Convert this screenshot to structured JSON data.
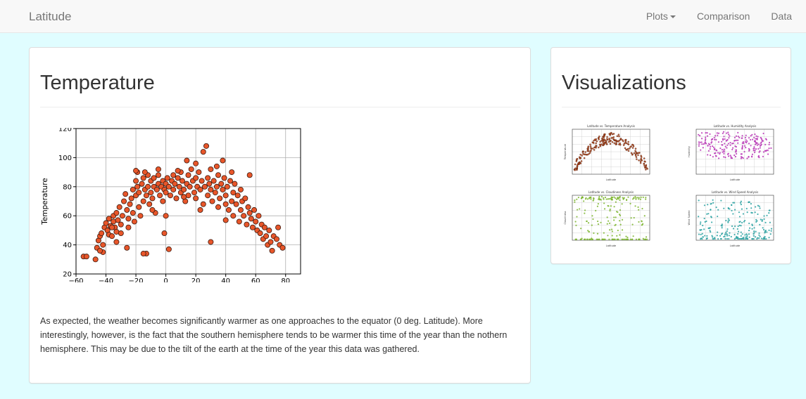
{
  "nav": {
    "brand": "Latitude",
    "links": [
      "Plots",
      "Comparison",
      "Data"
    ]
  },
  "main": {
    "title": "Temperature",
    "description": "As expected, the weather becomes significantly warmer as one approaches to the equator (0 deg. Latitude). More interestingly, however, is the fact that the southern hemisphere tends to be warmer this time of the year than the nothern hemisphere. This may be due to the tilt of the earth at the time of the year this data was gathered."
  },
  "sidebar": {
    "title": "Visualizations",
    "thumbnails": [
      {
        "title": "Latitude vs. Temperature Analysis",
        "xlabel": "Latitude",
        "ylabel": "Temperature",
        "color": "#b84212"
      },
      {
        "title": "Latitude vs. Humidity Analysis",
        "xlabel": "Latitude",
        "ylabel": "Humidity",
        "color": "#b733b5"
      },
      {
        "title": "Latitude vs. Cloudiness Analysis",
        "xlabel": "Latitude",
        "ylabel": "Cloudiness",
        "color": "#7db52e"
      },
      {
        "title": "Latitude vs. Wind Speed Analysis",
        "xlabel": "Latitude",
        "ylabel": "Wind Speed",
        "color": "#27a0a0"
      }
    ]
  },
  "chart_data": {
    "type": "scatter",
    "title": "Latitude vs. Temperature Analysis",
    "xlabel": "Latitude",
    "ylabel": "Temperature",
    "xlim": [
      -60,
      90
    ],
    "ylim": [
      20,
      120
    ],
    "xticks": [
      -60,
      -40,
      -20,
      0,
      20,
      40,
      60,
      80
    ],
    "yticks": [
      20,
      40,
      60,
      80,
      100,
      120
    ],
    "grid": true,
    "marker_color": "#e8562a",
    "points": [
      [
        -55,
        32
      ],
      [
        -53,
        32
      ],
      [
        -47,
        30
      ],
      [
        -46,
        38
      ],
      [
        -45,
        43
      ],
      [
        -44,
        46
      ],
      [
        -43,
        48
      ],
      [
        -42,
        40
      ],
      [
        -42,
        35
      ],
      [
        -41,
        52
      ],
      [
        -40,
        55
      ],
      [
        -39,
        50
      ],
      [
        -38,
        47
      ],
      [
        -38,
        58
      ],
      [
        -37,
        53
      ],
      [
        -36,
        46
      ],
      [
        -35,
        60
      ],
      [
        -35,
        56
      ],
      [
        -34,
        52
      ],
      [
        -33,
        49
      ],
      [
        -33,
        62
      ],
      [
        -32,
        57
      ],
      [
        -31,
        66
      ],
      [
        -30,
        54
      ],
      [
        -30,
        48
      ],
      [
        -29,
        60
      ],
      [
        -28,
        70
      ],
      [
        -27,
        75
      ],
      [
        -26,
        64
      ],
      [
        -25,
        58
      ],
      [
        -25,
        52
      ],
      [
        -24,
        68
      ],
      [
        -23,
        72
      ],
      [
        -22,
        78
      ],
      [
        -22,
        62
      ],
      [
        -21,
        56
      ],
      [
        -20,
        84
      ],
      [
        -20,
        74
      ],
      [
        -19,
        80
      ],
      [
        -19,
        90
      ],
      [
        -18,
        66
      ],
      [
        -18,
        76
      ],
      [
        -17,
        60
      ],
      [
        -16,
        82
      ],
      [
        -15,
        86
      ],
      [
        -15,
        70
      ],
      [
        -14,
        78
      ],
      [
        -13,
        74
      ],
      [
        -12,
        88
      ],
      [
        -12,
        80
      ],
      [
        -11,
        68
      ],
      [
        -10,
        84
      ],
      [
        -10,
        76
      ],
      [
        -9,
        72
      ],
      [
        -8,
        80
      ],
      [
        -8,
        86
      ],
      [
        -7,
        62
      ],
      [
        -6,
        78
      ],
      [
        -5,
        82
      ],
      [
        -5,
        88
      ],
      [
        -4,
        74
      ],
      [
        -3,
        80
      ],
      [
        -2,
        84
      ],
      [
        -2,
        70
      ],
      [
        -1,
        78
      ],
      [
        0,
        82
      ],
      [
        0,
        76
      ],
      [
        1,
        86
      ],
      [
        2,
        80
      ],
      [
        3,
        74
      ],
      [
        4,
        84
      ],
      [
        5,
        88
      ],
      [
        5,
        78
      ],
      [
        6,
        82
      ],
      [
        7,
        72
      ],
      [
        8,
        86
      ],
      [
        9,
        80
      ],
      [
        10,
        76
      ],
      [
        10,
        90
      ],
      [
        11,
        84
      ],
      [
        12,
        78
      ],
      [
        13,
        70
      ],
      [
        14,
        82
      ],
      [
        15,
        88
      ],
      [
        15,
        74
      ],
      [
        16,
        80
      ],
      [
        17,
        92
      ],
      [
        18,
        84
      ],
      [
        19,
        76
      ],
      [
        20,
        86
      ],
      [
        20,
        72
      ],
      [
        21,
        80
      ],
      [
        22,
        90
      ],
      [
        23,
        78
      ],
      [
        24,
        84
      ],
      [
        25,
        104
      ],
      [
        25,
        68
      ],
      [
        26,
        80
      ],
      [
        27,
        108
      ],
      [
        28,
        86
      ],
      [
        28,
        74
      ],
      [
        29,
        82
      ],
      [
        30,
        78
      ],
      [
        30,
        92
      ],
      [
        31,
        70
      ],
      [
        32,
        84
      ],
      [
        33,
        76
      ],
      [
        34,
        80
      ],
      [
        35,
        66
      ],
      [
        35,
        88
      ],
      [
        36,
        72
      ],
      [
        37,
        82
      ],
      [
        38,
        78
      ],
      [
        39,
        86
      ],
      [
        40,
        68
      ],
      [
        40,
        74
      ],
      [
        41,
        80
      ],
      [
        42,
        64
      ],
      [
        43,
        84
      ],
      [
        44,
        70
      ],
      [
        45,
        76
      ],
      [
        45,
        60
      ],
      [
        46,
        82
      ],
      [
        47,
        68
      ],
      [
        48,
        74
      ],
      [
        49,
        56
      ],
      [
        50,
        78
      ],
      [
        50,
        64
      ],
      [
        51,
        70
      ],
      [
        52,
        60
      ],
      [
        53,
        72
      ],
      [
        54,
        54
      ],
      [
        55,
        66
      ],
      [
        56,
        62
      ],
      [
        57,
        58
      ],
      [
        58,
        52
      ],
      [
        59,
        64
      ],
      [
        60,
        56
      ],
      [
        61,
        50
      ],
      [
        62,
        60
      ],
      [
        63,
        48
      ],
      [
        64,
        54
      ],
      [
        65,
        44
      ],
      [
        66,
        52
      ],
      [
        67,
        46
      ],
      [
        68,
        40
      ],
      [
        69,
        50
      ],
      [
        70,
        42
      ],
      [
        71,
        36
      ],
      [
        72,
        46
      ],
      [
        74,
        44
      ],
      [
        75,
        52
      ],
      [
        76,
        40
      ],
      [
        78,
        38
      ],
      [
        -13,
        34
      ],
      [
        -33,
        42
      ],
      [
        -26,
        38
      ],
      [
        2,
        37
      ],
      [
        -1,
        48
      ],
      [
        14,
        98
      ],
      [
        20,
        96
      ],
      [
        34,
        94
      ],
      [
        38,
        98
      ],
      [
        44,
        90
      ],
      [
        -20,
        91
      ],
      [
        -14,
        90
      ],
      [
        30,
        42
      ],
      [
        56,
        88
      ],
      [
        0,
        60
      ],
      [
        -15,
        34
      ],
      [
        -5,
        92
      ],
      [
        12,
        73
      ],
      [
        8,
        91
      ],
      [
        40,
        57
      ],
      [
        23,
        64
      ],
      [
        -36,
        52
      ],
      [
        -44,
        36
      ],
      [
        -9,
        64
      ]
    ]
  }
}
